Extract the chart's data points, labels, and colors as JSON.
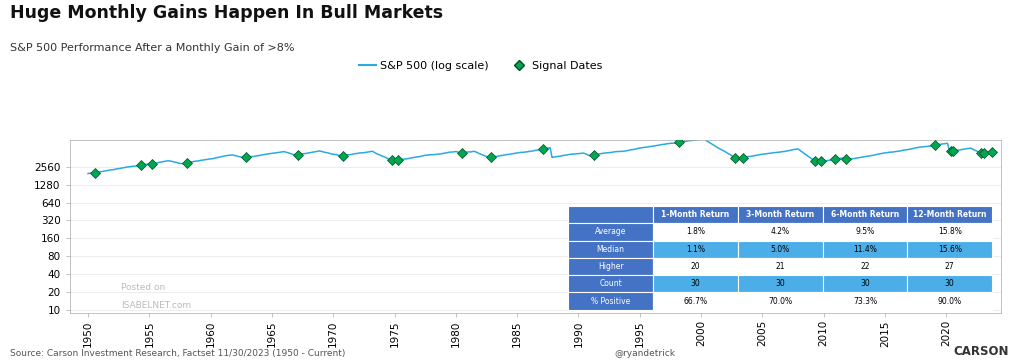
{
  "title": "Huge Monthly Gains Happen In Bull Markets",
  "subtitle": "S&P 500 Performance After a Monthly Gain of >8%",
  "line_color": "#29ABE2",
  "signal_color": "#00A651",
  "background_color": "#FFFFFF",
  "ylabel_ticks": [
    10,
    20,
    40,
    80,
    160,
    320,
    640,
    1280,
    2560
  ],
  "xlabel_ticks": [
    1950,
    1955,
    1960,
    1965,
    1970,
    1975,
    1980,
    1985,
    1990,
    1995,
    2000,
    2005,
    2010,
    2015,
    2020
  ],
  "source_text": "Source: Carson Investment Research, Factset 11/30/2023 (1950 - Current)",
  "twitter_text": "@ryandetrick",
  "watermark_line1": "Posted on",
  "watermark_line2": "ISABELNET.com",
  "legend_line": "S&P 500 (log scale)",
  "legend_signal": "Signal Dates",
  "table_header": [
    "",
    "1-Month Return",
    "3-Month Return",
    "6-Month Return",
    "12-Month Return"
  ],
  "table_rows": [
    [
      "Average",
      "1.8%",
      "4.2%",
      "9.5%",
      "15.8%"
    ],
    [
      "Median",
      "1.1%",
      "5.0%",
      "11.4%",
      "15.6%"
    ],
    [
      "Higher",
      "20",
      "21",
      "22",
      "27"
    ],
    [
      "Count",
      "30",
      "30",
      "30",
      "30"
    ],
    [
      "% Positive",
      "66.7%",
      "70.0%",
      "73.3%",
      "90.0%"
    ]
  ],
  "table_header_bg": "#4472C4",
  "table_row_blue": "#4BAEE8",
  "table_row_white": "#FFFFFF",
  "signal_years": [
    1950.6,
    1954.3,
    1955.2,
    1958.1,
    1962.9,
    1967.1,
    1970.8,
    1974.8,
    1975.3,
    1980.5,
    1982.9,
    1987.1,
    1991.3,
    1998.2,
    2002.8,
    2003.4,
    2009.3,
    2009.75,
    2010.9,
    2011.8,
    2019.1,
    2020.4,
    2020.55,
    2022.8,
    2023.05,
    2023.7
  ]
}
